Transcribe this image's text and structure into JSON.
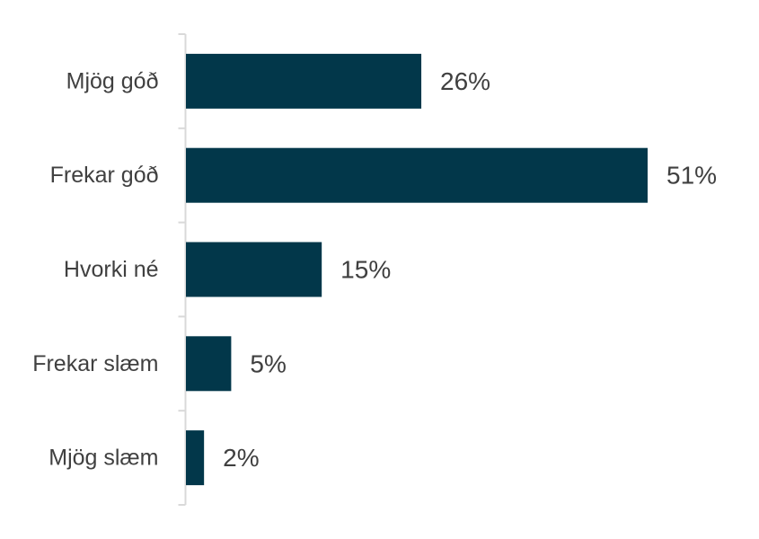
{
  "chart_data": {
    "type": "bar",
    "orientation": "horizontal",
    "categories": [
      "Mjög góð",
      "Frekar góð",
      "Hvorki né",
      "Frekar slæm",
      "Mjög slæm"
    ],
    "values": [
      26,
      51,
      15,
      5,
      2
    ],
    "value_labels": [
      "26%",
      "51%",
      "15%",
      "5%",
      "2%"
    ],
    "unit": "%",
    "xlim": [
      0,
      51
    ],
    "bar_color": "#02374a",
    "text_color": "#404040",
    "axis_color": "#d9d9d9",
    "grid": false,
    "legend": "none"
  }
}
